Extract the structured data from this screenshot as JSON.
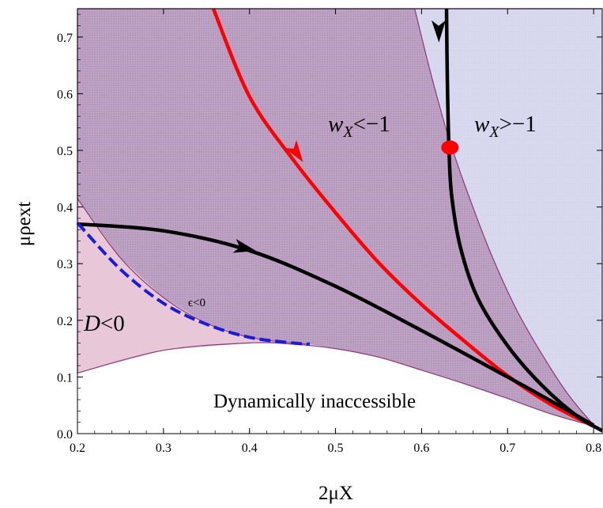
{
  "chart_data": {
    "type": "area",
    "xlabel": "2μX",
    "ylabel": "μρext",
    "xlim": [
      0.2,
      0.81
    ],
    "ylim": [
      0.0,
      0.75
    ],
    "xticks": [
      "0.2",
      "0.3",
      "0.4",
      "0.5",
      "0.6",
      "0.7",
      "0.8"
    ],
    "yticks": [
      "0.0",
      "0.1",
      "0.2",
      "0.3",
      "0.4",
      "0.5",
      "0.6",
      "0.7"
    ],
    "grid": false,
    "annotations": {
      "d_neg": {
        "prefix": "D",
        "suffix": "<0"
      },
      "w_less": {
        "base": "w",
        "sub": "X",
        "rel": "<−1"
      },
      "w_greater": {
        "base": "w",
        "sub": "X",
        "rel": ">−1"
      },
      "eps": "ϵ<0",
      "inaccessible": "Dynamically inaccessible"
    },
    "colors": {
      "pink_region": "#e8c8d8",
      "purple_region": "#b89bbf",
      "blue_region": "#d6d6ef",
      "boundary": "#8a3a78",
      "red_curve": "#ff0000",
      "black_curve": "#000000",
      "blue_dashed": "#1b1bd8",
      "point": "#ff0000"
    },
    "regions": {
      "lower_boundary": {
        "x": [
          0.2,
          0.3,
          0.4,
          0.45,
          0.5,
          0.55,
          0.6,
          0.65,
          0.7,
          0.75,
          0.8,
          0.81
        ],
        "y": [
          0.107,
          0.147,
          0.16,
          0.158,
          0.15,
          0.135,
          0.112,
          0.088,
          0.062,
          0.035,
          0.013,
          0.004
        ]
      },
      "purple_right_boundary": {
        "x": [
          0.592,
          0.61,
          0.63,
          0.65,
          0.68,
          0.71,
          0.74,
          0.77,
          0.8
        ],
        "y": [
          0.75,
          0.64,
          0.53,
          0.44,
          0.32,
          0.22,
          0.14,
          0.07,
          0.015
        ]
      },
      "blue_left_boundary": {
        "x": [
          0.2,
          0.25,
          0.3,
          0.35,
          0.4,
          0.45,
          0.47
        ],
        "y": [
          0.415,
          0.31,
          0.24,
          0.195,
          0.17,
          0.16,
          0.158
        ]
      }
    },
    "series": [
      {
        "style": "red-solid",
        "x": [
          0.358,
          0.4,
          0.45,
          0.5,
          0.55,
          0.6,
          0.65,
          0.7,
          0.75,
          0.8
        ],
        "y": [
          0.75,
          0.595,
          0.485,
          0.39,
          0.302,
          0.228,
          0.163,
          0.102,
          0.052,
          0.013
        ]
      },
      {
        "style": "black-lower",
        "x": [
          0.2,
          0.3,
          0.4,
          0.5,
          0.6,
          0.7,
          0.75,
          0.8
        ],
        "y": [
          0.37,
          0.358,
          0.323,
          0.26,
          0.182,
          0.1,
          0.058,
          0.015
        ]
      },
      {
        "style": "black-upper",
        "x": [
          0.629,
          0.63,
          0.632,
          0.635,
          0.645,
          0.665,
          0.7,
          0.74,
          0.78,
          0.81
        ],
        "y": [
          0.75,
          0.62,
          0.5,
          0.42,
          0.33,
          0.24,
          0.155,
          0.085,
          0.032,
          0.005
        ]
      },
      {
        "style": "blue-dashed",
        "x": [
          0.2,
          0.25,
          0.3,
          0.35,
          0.4,
          0.45,
          0.47
        ],
        "y": [
          0.372,
          0.29,
          0.23,
          0.193,
          0.17,
          0.16,
          0.158
        ]
      }
    ],
    "arrows": [
      {
        "x": 0.455,
        "y": 0.495
      },
      {
        "x": 0.62,
        "y": 0.71
      },
      {
        "x": 0.395,
        "y": 0.327
      }
    ],
    "points": [
      {
        "x": 0.633,
        "y": 0.505
      }
    ]
  }
}
